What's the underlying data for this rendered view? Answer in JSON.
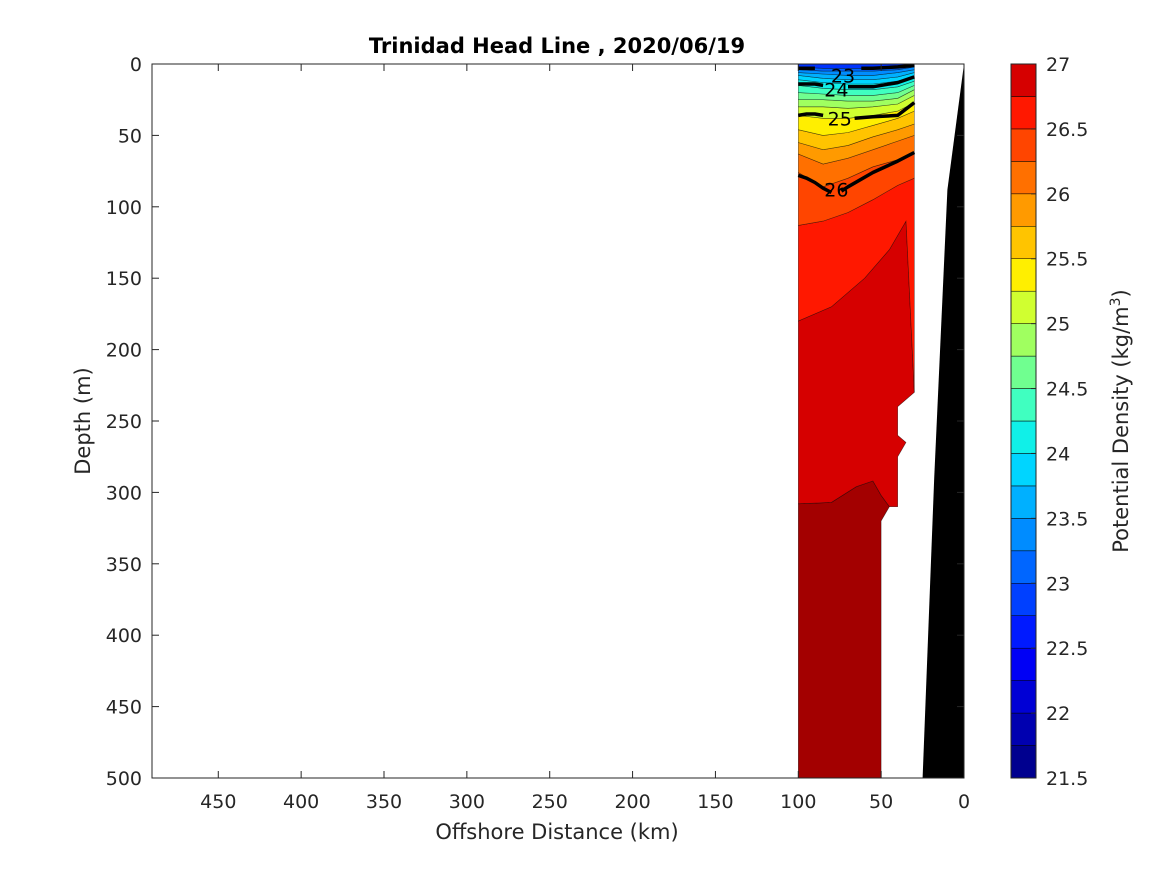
{
  "chart_data": {
    "type": "contour",
    "title": "Trinidad Head Line , 2020/06/19",
    "xlabel": "Offshore Distance (km)",
    "ylabel": "Depth (m)",
    "colorbar_label": "Potential Density (kg/m",
    "colorbar_label_sup": "3",
    "colorbar_label_close": ")",
    "xlim": [
      490,
      0
    ],
    "ylim": [
      0,
      500
    ],
    "x_reversed": true,
    "y_reversed": true,
    "xticks": [
      450,
      400,
      350,
      300,
      250,
      200,
      150,
      100,
      50,
      0
    ],
    "yticks": [
      0,
      50,
      100,
      150,
      200,
      250,
      300,
      350,
      400,
      450,
      500
    ],
    "colorbar_range": [
      21.5,
      27
    ],
    "colorbar_ticks": [
      27,
      26.5,
      26,
      25.5,
      25,
      24.5,
      24,
      23.5,
      23,
      22.5,
      22,
      21.5
    ],
    "colorbar_levels": [
      {
        "lo": 21.5,
        "hi": 21.75,
        "color": "#00008f"
      },
      {
        "lo": 21.75,
        "hi": 22.0,
        "color": "#0000b0"
      },
      {
        "lo": 22.0,
        "hi": 22.25,
        "color": "#0000d5"
      },
      {
        "lo": 22.25,
        "hi": 22.5,
        "color": "#0000f5"
      },
      {
        "lo": 22.5,
        "hi": 22.75,
        "color": "#001aff"
      },
      {
        "lo": 22.75,
        "hi": 23.0,
        "color": "#0040ff"
      },
      {
        "lo": 23.0,
        "hi": 23.25,
        "color": "#0066ff"
      },
      {
        "lo": 23.25,
        "hi": 23.5,
        "color": "#008cff"
      },
      {
        "lo": 23.5,
        "hi": 23.75,
        "color": "#00b0ff"
      },
      {
        "lo": 23.75,
        "hi": 24.0,
        "color": "#00d5ff"
      },
      {
        "lo": 24.0,
        "hi": 24.25,
        "color": "#10f0e8"
      },
      {
        "lo": 24.25,
        "hi": 24.5,
        "color": "#40ffc0"
      },
      {
        "lo": 24.5,
        "hi": 24.75,
        "color": "#70ff90"
      },
      {
        "lo": 24.75,
        "hi": 25.0,
        "color": "#a0ff60"
      },
      {
        "lo": 25.0,
        "hi": 25.25,
        "color": "#d0ff30"
      },
      {
        "lo": 25.25,
        "hi": 25.5,
        "color": "#ffef00"
      },
      {
        "lo": 25.5,
        "hi": 25.75,
        "color": "#ffc400"
      },
      {
        "lo": 25.75,
        "hi": 26.0,
        "color": "#ff9a00"
      },
      {
        "lo": 26.0,
        "hi": 26.25,
        "color": "#ff7000"
      },
      {
        "lo": 26.25,
        "hi": 26.5,
        "color": "#ff4500"
      },
      {
        "lo": 26.5,
        "hi": 26.75,
        "color": "#ff1800"
      },
      {
        "lo": 26.75,
        "hi": 27.0,
        "color": "#d60000"
      },
      {
        "lo": 27.0,
        "hi": 27.25,
        "color": "#a30000"
      }
    ],
    "contour_labels": [
      {
        "text": "23",
        "x": 73,
        "y": 8
      },
      {
        "text": "24",
        "x": 77,
        "y": 18
      },
      {
        "text": "25",
        "x": 75,
        "y": 38
      },
      {
        "text": "26",
        "x": 77,
        "y": 88
      }
    ],
    "bands": [
      {
        "name": "27-plus",
        "color": "#a30000",
        "outline": [
          [
            100,
            500
          ],
          [
            100,
            308
          ],
          [
            80,
            307
          ],
          [
            65,
            296
          ],
          [
            55,
            292
          ],
          [
            50,
            302
          ],
          [
            45,
            310
          ],
          [
            50,
            320
          ],
          [
            50,
            500
          ]
        ]
      },
      {
        "name": "26.75-27",
        "color": "#d60000",
        "outline": [
          [
            100,
            308
          ],
          [
            100,
            180
          ],
          [
            80,
            170
          ],
          [
            60,
            150
          ],
          [
            45,
            130
          ],
          [
            40,
            120
          ],
          [
            35,
            110
          ],
          [
            30,
            230
          ],
          [
            40,
            240
          ],
          [
            40,
            260
          ],
          [
            35,
            265
          ],
          [
            40,
            275
          ],
          [
            40,
            310
          ],
          [
            45,
            310
          ],
          [
            50,
            302
          ],
          [
            55,
            292
          ],
          [
            65,
            296
          ],
          [
            80,
            307
          ]
        ]
      },
      {
        "name": "26.5-26.75",
        "color": "#ff1800",
        "outline": [
          [
            100,
            180
          ],
          [
            100,
            113
          ],
          [
            85,
            110
          ],
          [
            70,
            104
          ],
          [
            55,
            95
          ],
          [
            40,
            85
          ],
          [
            30,
            80
          ],
          [
            30,
            230
          ],
          [
            35,
            110
          ],
          [
            40,
            120
          ],
          [
            45,
            130
          ],
          [
            60,
            150
          ],
          [
            80,
            170
          ]
        ]
      },
      {
        "name": "26.25-26.5",
        "color": "#ff4500",
        "outline": [
          [
            100,
            113
          ],
          [
            100,
            76
          ],
          [
            85,
            86
          ],
          [
            70,
            80
          ],
          [
            55,
            72
          ],
          [
            40,
            67
          ],
          [
            30,
            62
          ],
          [
            30,
            80
          ],
          [
            40,
            85
          ],
          [
            55,
            95
          ],
          [
            70,
            104
          ],
          [
            85,
            110
          ]
        ]
      },
      {
        "name": "26-26.25",
        "color": "#ff7000",
        "outline": [
          [
            100,
            76
          ],
          [
            100,
            63
          ],
          [
            85,
            70
          ],
          [
            70,
            66
          ],
          [
            55,
            60
          ],
          [
            40,
            54
          ],
          [
            30,
            50
          ],
          [
            30,
            62
          ],
          [
            40,
            67
          ],
          [
            55,
            72
          ],
          [
            70,
            80
          ],
          [
            85,
            86
          ]
        ]
      },
      {
        "name": "25.75-26",
        "color": "#ff9a00",
        "outline": [
          [
            100,
            63
          ],
          [
            100,
            55
          ],
          [
            85,
            60
          ],
          [
            70,
            57
          ],
          [
            55,
            51
          ],
          [
            40,
            46
          ],
          [
            30,
            42
          ],
          [
            30,
            50
          ],
          [
            40,
            54
          ],
          [
            55,
            60
          ],
          [
            70,
            66
          ],
          [
            85,
            70
          ]
        ]
      },
      {
        "name": "25.5-25.75",
        "color": "#ffc400",
        "outline": [
          [
            100,
            55
          ],
          [
            100,
            46
          ],
          [
            85,
            50
          ],
          [
            70,
            48
          ],
          [
            55,
            43
          ],
          [
            40,
            38
          ],
          [
            30,
            33
          ],
          [
            30,
            42
          ],
          [
            40,
            46
          ],
          [
            55,
            51
          ],
          [
            70,
            57
          ],
          [
            85,
            60
          ]
        ]
      },
      {
        "name": "25.25-25.5",
        "color": "#ffef00",
        "outline": [
          [
            100,
            46
          ],
          [
            100,
            36
          ],
          [
            85,
            38
          ],
          [
            70,
            38
          ],
          [
            55,
            36
          ],
          [
            40,
            33
          ],
          [
            30,
            27
          ],
          [
            30,
            33
          ],
          [
            40,
            38
          ],
          [
            55,
            43
          ],
          [
            70,
            48
          ],
          [
            85,
            50
          ]
        ]
      },
      {
        "name": "25-25.25",
        "color": "#d0ff30",
        "outline": [
          [
            100,
            36
          ],
          [
            100,
            30
          ],
          [
            85,
            30
          ],
          [
            70,
            31
          ],
          [
            55,
            30
          ],
          [
            40,
            28
          ],
          [
            30,
            22
          ],
          [
            30,
            27
          ],
          [
            40,
            33
          ],
          [
            55,
            36
          ],
          [
            70,
            38
          ],
          [
            85,
            38
          ]
        ]
      },
      {
        "name": "24.75-25",
        "color": "#a0ff60",
        "outline": [
          [
            100,
            30
          ],
          [
            100,
            25
          ],
          [
            85,
            25
          ],
          [
            70,
            26
          ],
          [
            55,
            26
          ],
          [
            40,
            24
          ],
          [
            30,
            18
          ],
          [
            30,
            22
          ],
          [
            40,
            28
          ],
          [
            55,
            30
          ],
          [
            70,
            31
          ],
          [
            85,
            30
          ]
        ]
      },
      {
        "name": "24.5-24.75",
        "color": "#70ff90",
        "outline": [
          [
            100,
            25
          ],
          [
            100,
            20
          ],
          [
            85,
            21
          ],
          [
            70,
            22
          ],
          [
            55,
            22
          ],
          [
            40,
            20
          ],
          [
            30,
            15
          ],
          [
            30,
            18
          ],
          [
            40,
            24
          ],
          [
            55,
            26
          ],
          [
            70,
            26
          ],
          [
            85,
            25
          ]
        ]
      },
      {
        "name": "24.25-24.5",
        "color": "#40ffc0",
        "outline": [
          [
            100,
            20
          ],
          [
            100,
            15
          ],
          [
            85,
            17
          ],
          [
            70,
            18
          ],
          [
            55,
            18
          ],
          [
            40,
            16
          ],
          [
            30,
            12
          ],
          [
            30,
            15
          ],
          [
            40,
            20
          ],
          [
            55,
            22
          ],
          [
            70,
            22
          ],
          [
            85,
            21
          ]
        ]
      },
      {
        "name": "24-24.25",
        "color": "#10f0e8",
        "outline": [
          [
            100,
            15
          ],
          [
            100,
            11
          ],
          [
            85,
            13
          ],
          [
            70,
            14
          ],
          [
            55,
            14
          ],
          [
            40,
            12
          ],
          [
            30,
            9
          ],
          [
            30,
            12
          ],
          [
            40,
            16
          ],
          [
            55,
            18
          ],
          [
            70,
            18
          ],
          [
            85,
            17
          ]
        ]
      },
      {
        "name": "23.75-24",
        "color": "#00d5ff",
        "outline": [
          [
            100,
            11
          ],
          [
            100,
            8
          ],
          [
            85,
            10
          ],
          [
            70,
            11
          ],
          [
            55,
            11
          ],
          [
            40,
            9
          ],
          [
            30,
            6
          ],
          [
            30,
            9
          ],
          [
            40,
            12
          ],
          [
            55,
            14
          ],
          [
            70,
            14
          ],
          [
            85,
            13
          ]
        ]
      },
      {
        "name": "23.5-23.75",
        "color": "#00b0ff",
        "outline": [
          [
            100,
            8
          ],
          [
            100,
            6
          ],
          [
            85,
            7
          ],
          [
            70,
            8
          ],
          [
            55,
            8
          ],
          [
            40,
            6
          ],
          [
            30,
            4
          ],
          [
            30,
            6
          ],
          [
            40,
            9
          ],
          [
            55,
            11
          ],
          [
            70,
            11
          ],
          [
            85,
            10
          ]
        ]
      },
      {
        "name": "23.25-23.5",
        "color": "#008cff",
        "outline": [
          [
            100,
            6
          ],
          [
            100,
            4
          ],
          [
            85,
            5
          ],
          [
            70,
            5
          ],
          [
            55,
            5
          ],
          [
            40,
            4
          ],
          [
            30,
            2
          ],
          [
            30,
            4
          ],
          [
            40,
            6
          ],
          [
            55,
            8
          ],
          [
            70,
            8
          ],
          [
            85,
            7
          ]
        ]
      },
      {
        "name": "23-23.25",
        "color": "#0066ff",
        "outline": [
          [
            100,
            4
          ],
          [
            100,
            2
          ],
          [
            85,
            3
          ],
          [
            70,
            3
          ],
          [
            55,
            3
          ],
          [
            40,
            2
          ],
          [
            30,
            1
          ],
          [
            30,
            2
          ],
          [
            40,
            4
          ],
          [
            55,
            5
          ],
          [
            70,
            5
          ],
          [
            85,
            5
          ]
        ]
      },
      {
        "name": "below-23",
        "color": "#0033ff",
        "outline": [
          [
            100,
            2
          ],
          [
            100,
            0
          ],
          [
            30,
            0
          ],
          [
            30,
            1
          ],
          [
            40,
            2
          ],
          [
            55,
            3
          ],
          [
            70,
            3
          ],
          [
            85,
            3
          ]
        ]
      }
    ],
    "major_contours": [
      {
        "level": 26,
        "line": [
          [
            100,
            78
          ],
          [
            95,
            80
          ],
          [
            90,
            83
          ],
          [
            85,
            87
          ],
          [
            80,
            90
          ]
        ]
      },
      {
        "level": 26,
        "line": [
          [
            74,
            89
          ],
          [
            70,
            86
          ],
          [
            55,
            76
          ],
          [
            40,
            68
          ],
          [
            30,
            62
          ]
        ]
      },
      {
        "level": 25,
        "line": [
          [
            100,
            36
          ],
          [
            95,
            35
          ],
          [
            90,
            35
          ],
          [
            85,
            36
          ]
        ]
      },
      {
        "level": 25,
        "line": [
          [
            66,
            38
          ],
          [
            55,
            37
          ],
          [
            40,
            36
          ],
          [
            30,
            27
          ]
        ]
      },
      {
        "level": 24,
        "line": [
          [
            100,
            14
          ],
          [
            90,
            14
          ],
          [
            85,
            15
          ]
        ]
      },
      {
        "level": 24,
        "line": [
          [
            70,
            16
          ],
          [
            55,
            16
          ],
          [
            40,
            13
          ],
          [
            30,
            9
          ]
        ]
      },
      {
        "level": 23,
        "line": [
          [
            100,
            3
          ],
          [
            90,
            3
          ]
        ]
      },
      {
        "level": 23,
        "line": [
          [
            62,
            3
          ],
          [
            55,
            3
          ],
          [
            40,
            2
          ],
          [
            30,
            1
          ]
        ]
      }
    ],
    "bathymetry": {
      "name": "seafloor",
      "color": "#000000",
      "outline": [
        [
          0,
          0
        ],
        [
          10,
          88
        ],
        [
          18,
          290
        ],
        [
          25,
          500
        ],
        [
          0,
          500
        ]
      ]
    }
  }
}
